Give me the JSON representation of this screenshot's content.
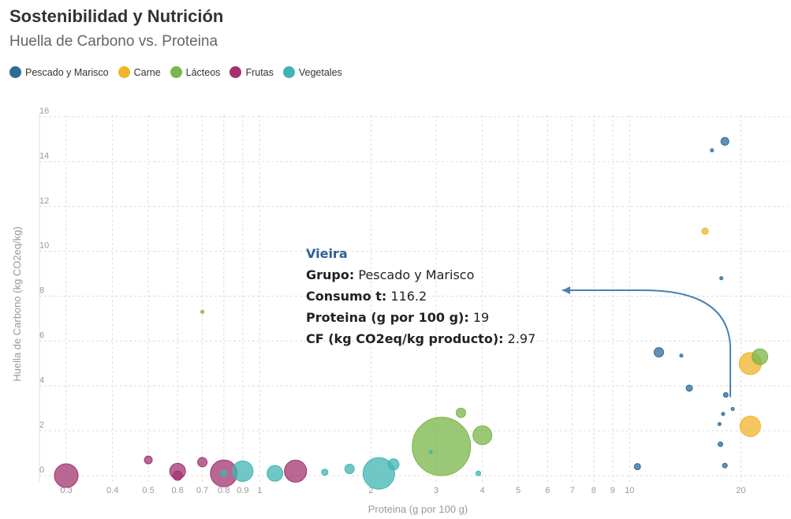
{
  "title": "Sostenibilidad y Nutrición",
  "subtitle": "Huella de Carbono vs. Proteina",
  "legend": [
    {
      "label": "Pescado y Marisco",
      "color": "#2f6b95"
    },
    {
      "label": "Carne",
      "color": "#f0b32a"
    },
    {
      "label": "Lácteos",
      "color": "#7ab648"
    },
    {
      "label": "Frutas",
      "color": "#a0356f"
    },
    {
      "label": "Vegetales",
      "color": "#3fb5b3"
    }
  ],
  "tooltip": {
    "title": "Vieira",
    "rows": [
      {
        "label": "Grupo",
        "value": "Pescado y Marisco"
      },
      {
        "label": "Consumo t",
        "value": "116.2"
      },
      {
        "label": "Proteina (g por 100 g)",
        "value": "19"
      },
      {
        "label": "CF (kg CO2eq/kg producto)",
        "value": "2.97"
      }
    ]
  },
  "chart_data": {
    "type": "scatter",
    "xscale": "log",
    "xlabel": "Proteina (g por 100 g)",
    "ylabel": "Huella de Carbono (kg CO2eq/kg)",
    "xlim": [
      0.3,
      23
    ],
    "ylim": [
      0,
      16
    ],
    "xticks": [
      {
        "value": 0.3,
        "label": "0.3"
      },
      {
        "value": 0.4,
        "label": "0.4"
      },
      {
        "value": 0.5,
        "label": "0.5"
      },
      {
        "value": 0.6,
        "label": "0.6"
      },
      {
        "value": 0.7,
        "label": "0.7"
      },
      {
        "value": 0.8,
        "label": "0.8"
      },
      {
        "value": 0.9,
        "label": "0.9"
      },
      {
        "value": 1,
        "label": "1"
      },
      {
        "value": 2,
        "label": "2"
      },
      {
        "value": 3,
        "label": "3"
      },
      {
        "value": 4,
        "label": "4"
      },
      {
        "value": 5,
        "label": "5"
      },
      {
        "value": 6,
        "label": "6"
      },
      {
        "value": 7,
        "label": "7"
      },
      {
        "value": 8,
        "label": "8"
      },
      {
        "value": 9,
        "label": "9"
      },
      {
        "value": 10,
        "label": "10"
      },
      {
        "value": 20,
        "label": "20"
      }
    ],
    "yticks": [
      0,
      2,
      4,
      6,
      8,
      10,
      12,
      14,
      16
    ],
    "grid": true,
    "legend_position": "top-left",
    "series": [
      {
        "name": "Pescado y Marisco",
        "color": "#2f6b95",
        "points": [
          {
            "x": 18.1,
            "y": 14.9,
            "size": 5
          },
          {
            "x": 16.7,
            "y": 14.5,
            "size": 2
          },
          {
            "x": 17.7,
            "y": 8.8,
            "size": 2
          },
          {
            "x": 12.0,
            "y": 5.5,
            "size": 6
          },
          {
            "x": 13.8,
            "y": 5.35,
            "size": 2
          },
          {
            "x": 14.5,
            "y": 3.9,
            "size": 4
          },
          {
            "x": 18.2,
            "y": 3.6,
            "size": 3
          },
          {
            "x": 17.9,
            "y": 2.75,
            "size": 2
          },
          {
            "x": 19.0,
            "y": 2.97,
            "size": 2
          },
          {
            "x": 17.5,
            "y": 2.3,
            "size": 2
          },
          {
            "x": 17.6,
            "y": 1.4,
            "size": 3
          },
          {
            "x": 18.1,
            "y": 0.45,
            "size": 3
          },
          {
            "x": 10.5,
            "y": 0.4,
            "size": 4
          }
        ]
      },
      {
        "name": "Carne",
        "color": "#f0b32a",
        "points": [
          {
            "x": 16.0,
            "y": 10.9,
            "size": 4
          },
          {
            "x": 21.2,
            "y": 5.0,
            "size": 14
          },
          {
            "x": 21.2,
            "y": 2.2,
            "size": 13
          }
        ]
      },
      {
        "name": "Lácteos",
        "color": "#7ab648",
        "points": [
          {
            "x": 0.7,
            "y": 7.3,
            "size": 2
          },
          {
            "x": 22.5,
            "y": 5.3,
            "size": 10
          },
          {
            "x": 3.1,
            "y": 1.3,
            "size": 37
          },
          {
            "x": 3.5,
            "y": 2.8,
            "size": 6
          },
          {
            "x": 4.0,
            "y": 1.8,
            "size": 12
          }
        ]
      },
      {
        "name": "Frutas",
        "color": "#a0356f",
        "points": [
          {
            "x": 0.3,
            "y": 0.0,
            "size": 15
          },
          {
            "x": 0.5,
            "y": 0.7,
            "size": 5
          },
          {
            "x": 0.6,
            "y": 0.2,
            "size": 10
          },
          {
            "x": 0.6,
            "y": 0.0,
            "size": 6
          },
          {
            "x": 0.7,
            "y": 0.6,
            "size": 6
          },
          {
            "x": 0.8,
            "y": 0.1,
            "size": 17
          },
          {
            "x": 1.25,
            "y": 0.2,
            "size": 14
          }
        ]
      },
      {
        "name": "Vegetales",
        "color": "#3fb5b3",
        "points": [
          {
            "x": 0.8,
            "y": 0.1,
            "size": 4
          },
          {
            "x": 0.9,
            "y": 0.2,
            "size": 13
          },
          {
            "x": 1.1,
            "y": 0.1,
            "size": 10
          },
          {
            "x": 1.5,
            "y": 0.15,
            "size": 4
          },
          {
            "x": 1.75,
            "y": 0.3,
            "size": 6
          },
          {
            "x": 2.1,
            "y": 0.1,
            "size": 20
          },
          {
            "x": 2.3,
            "y": 0.5,
            "size": 7
          },
          {
            "x": 2.9,
            "y": 1.05,
            "size": 2
          },
          {
            "x": 3.9,
            "y": 0.1,
            "size": 3
          }
        ]
      }
    ],
    "highlight": {
      "x": 19,
      "y": 2.97
    }
  }
}
